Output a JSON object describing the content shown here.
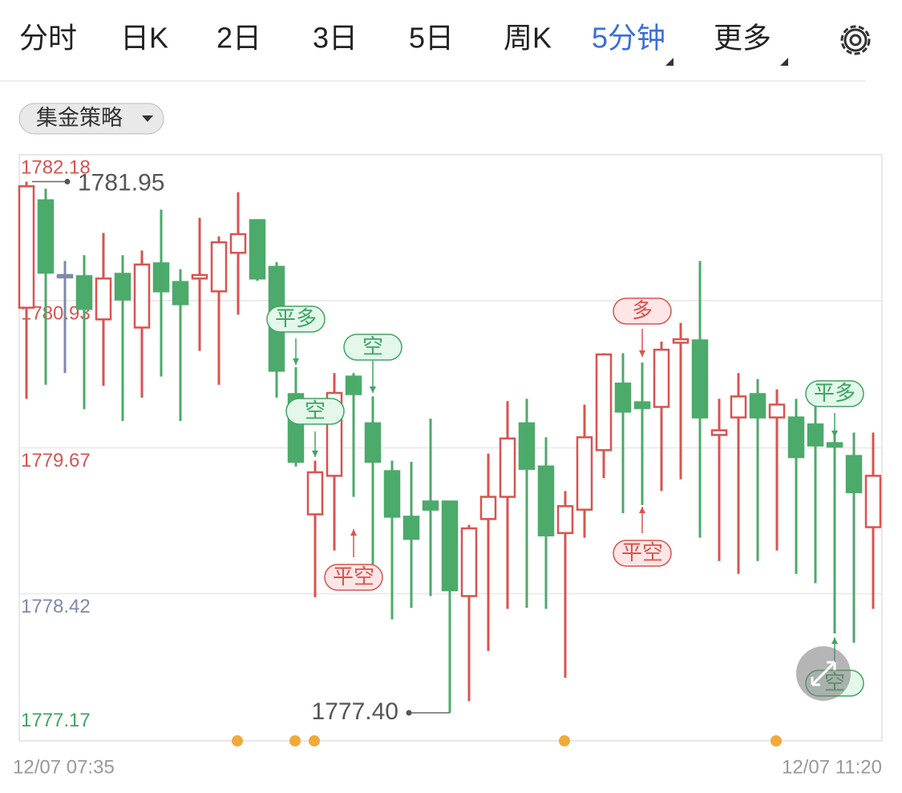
{
  "tabs": [
    "分时",
    "日K",
    "2日",
    "3日",
    "5日",
    "周K",
    "5分钟",
    "更多"
  ],
  "strategy_button": "集金策略",
  "chart_data": {
    "type": "candlestick",
    "ylim": [
      1777.17,
      1782.18
    ],
    "yticks": [
      1782.18,
      1780.93,
      1779.67,
      1778.42,
      1777.17
    ],
    "ytick_colors": [
      "#d9534f",
      "#d9534f",
      "#d9534f",
      "#7f8aa6",
      "#3fa561"
    ],
    "grid": true,
    "up_color": "#d9534f",
    "down_color": "#4caa6a",
    "flat_color": "#7f8aa6",
    "x_labels": [
      "12/07 07:35",
      "12/07 11:20"
    ],
    "open": [
      1780.87,
      1781.79,
      1781.15,
      1781.14,
      1780.77,
      1781.16,
      1780.7,
      1781.25,
      1781.09,
      1781.12,
      1781.01,
      1781.34,
      1781.62,
      1781.22,
      1780.13,
      1779.1,
      1779.43,
      1780.28,
      1779.88,
      1779.47,
      1779.08,
      1779.21,
      1779.21,
      1778.4,
      1779.06,
      1779.25,
      1779.88,
      1779.51,
      1778.94,
      1779.14,
      1779.65,
      1780.22,
      1780.06,
      1780.02,
      1780.57,
      1780.59,
      1779.78,
      1779.93,
      1780.13,
      1779.93,
      1779.93,
      1779.87,
      1779.71,
      1779.6,
      1778.99
    ],
    "high": [
      1781.95,
      1781.89,
      1781.27,
      1781.32,
      1781.51,
      1781.32,
      1781.36,
      1781.71,
      1781.2,
      1781.64,
      1781.48,
      1781.86,
      1781.62,
      1781.26,
      1780.36,
      1779.56,
      1780.31,
      1780.31,
      1780.11,
      1779.56,
      1779.55,
      1779.92,
      1779.21,
      1779.01,
      1779.62,
      1780.07,
      1780.09,
      1779.76,
      1779.3,
      1780.04,
      1780.48,
      1780.48,
      1780.4,
      1780.58,
      1780.74,
      1781.27,
      1780.09,
      1780.31,
      1780.26,
      1780.17,
      1780.09,
      1780.07,
      1779.8,
      1779.8,
      1779.8
    ],
    "low": [
      1780.09,
      1780.21,
      1780.31,
      1780.0,
      1780.2,
      1779.9,
      1780.1,
      1780.28,
      1779.9,
      1780.5,
      1780.21,
      1780.81,
      1781.1,
      1780.1,
      1779.51,
      1778.39,
      1778.79,
      1779.25,
      1778.67,
      1778.2,
      1778.3,
      1778.4,
      1777.4,
      1777.5,
      1777.93,
      1778.29,
      1778.3,
      1778.29,
      1777.7,
      1778.9,
      1779.41,
      1779.11,
      1779.18,
      1779.3,
      1779.4,
      1778.9,
      1778.7,
      1778.59,
      1778.7,
      1778.79,
      1778.59,
      1778.51,
      1778.08,
      1778.0,
      1778.29
    ],
    "close": [
      1781.91,
      1781.17,
      1781.15,
      1780.86,
      1781.12,
      1780.94,
      1781.24,
      1781.01,
      1780.9,
      1781.15,
      1781.43,
      1781.5,
      1781.12,
      1780.33,
      1779.55,
      1779.46,
      1780.14,
      1780.13,
      1779.55,
      1779.08,
      1778.89,
      1779.14,
      1778.45,
      1778.98,
      1779.25,
      1779.75,
      1779.49,
      1778.92,
      1779.17,
      1779.76,
      1780.47,
      1779.98,
      1780.01,
      1780.51,
      1780.6,
      1779.93,
      1779.82,
      1780.11,
      1779.93,
      1780.04,
      1779.59,
      1779.69,
      1779.68,
      1779.29,
      1779.43
    ],
    "high_annotation": 1781.95,
    "low_annotation": {
      "value": 1777.4,
      "label": "1777.40"
    },
    "signals": [
      "平多",
      "空",
      "空",
      "平空",
      "多",
      "平空",
      "平多",
      "空"
    ]
  }
}
